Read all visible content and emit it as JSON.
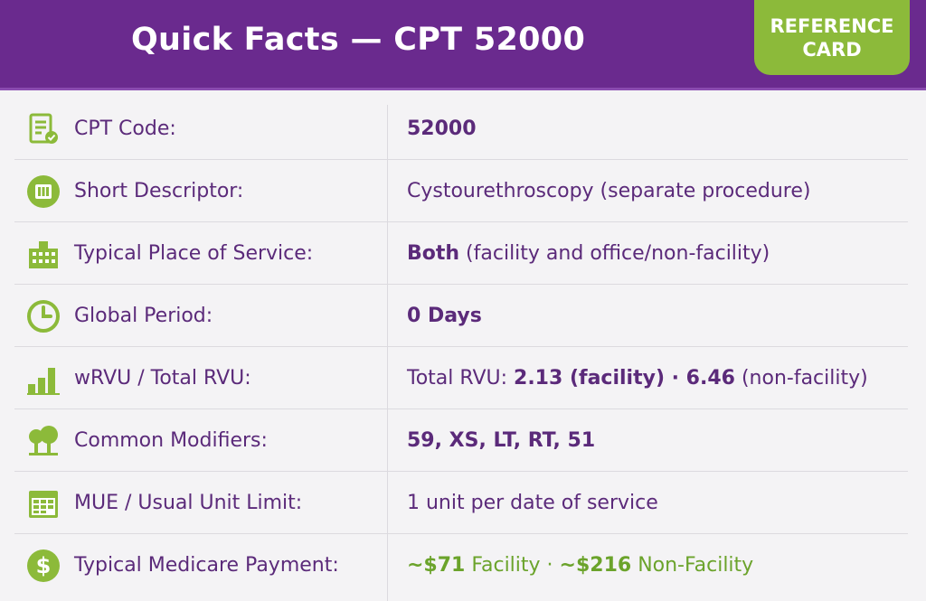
{
  "header": {
    "title": "Quick Facts — CPT 52000",
    "badge_line1": "REFERENCE",
    "badge_line2": "CARD"
  },
  "colors": {
    "purple": "#6a2a8e",
    "green": "#8cba3a",
    "text": "#5b2a7a"
  },
  "rows": [
    {
      "icon": "document-check-icon",
      "label": "CPT Code:",
      "value": "52000"
    },
    {
      "icon": "descriptor-icon",
      "label": "Short Descriptor:",
      "value": "Cystourethroscopy (separate procedure)"
    },
    {
      "icon": "building-icon",
      "label": "Typical Place of Service:",
      "value_bold": "Both",
      "value_rest": " (facility and office/non-facility)"
    },
    {
      "icon": "clock-icon",
      "label": "Global Period:",
      "value": "0 Days"
    },
    {
      "icon": "bar-chart-icon",
      "label": "wRVU / Total RVU:",
      "value_prefix": "Total RVU: ",
      "value_a": "2.13 (facility) · 6.46",
      "value_b": " (non-facility)"
    },
    {
      "icon": "tree-icon",
      "label": "Common Modifiers:",
      "value": "59, XS, LT, RT, 51"
    },
    {
      "icon": "calendar-icon",
      "label": "MUE / Usual Unit Limit:",
      "value": "1 unit per date of service"
    },
    {
      "icon": "dollar-icon",
      "label": "Typical Medicare Payment:",
      "value_a": "~$71",
      "value_b": " Facility · ",
      "value_c": "~$216",
      "value_d": " Non-Facility"
    }
  ]
}
